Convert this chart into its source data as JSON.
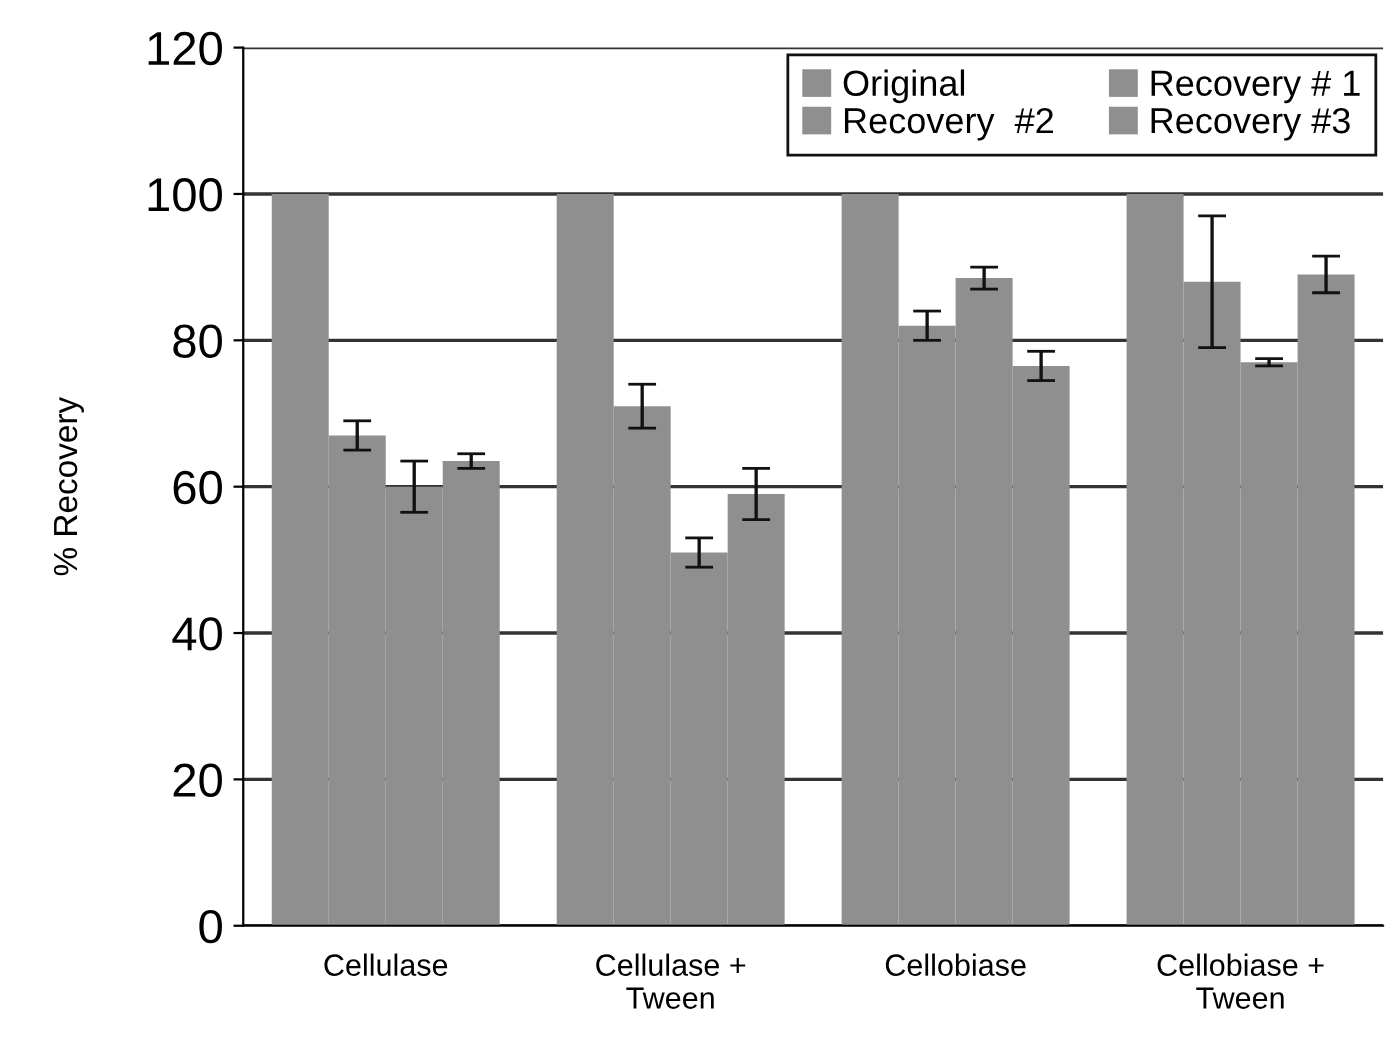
{
  "chart_data": {
    "type": "bar",
    "ylabel": "% Recovery",
    "categories": [
      "Cellulase",
      "Cellulase +\nTween",
      "Cellobiase",
      "Cellobiase +\nTween"
    ],
    "series": [
      {
        "name": "Original",
        "color": "#8f8f8f",
        "values": [
          100,
          100,
          100,
          100
        ]
      },
      {
        "name": "Recovery # 1",
        "color": "#8f8f8f",
        "values": [
          67,
          71,
          82,
          88
        ],
        "errors": [
          2,
          3,
          2,
          9
        ]
      },
      {
        "name": "Recovery  #2",
        "color": "#8f8f8f",
        "values": [
          60,
          51,
          88.5,
          77
        ],
        "errors": [
          3.5,
          2,
          1.5,
          0.5
        ]
      },
      {
        "name": "Recovery #3",
        "color": "#8f8f8f",
        "values": [
          63.5,
          59,
          76.5,
          89
        ],
        "errors": [
          1,
          3.5,
          2,
          2.5
        ]
      }
    ],
    "ylim": [
      0,
      120
    ],
    "yticks": [
      0,
      20,
      40,
      60,
      80,
      100,
      120
    ],
    "grid": "y",
    "legend": "top right"
  }
}
